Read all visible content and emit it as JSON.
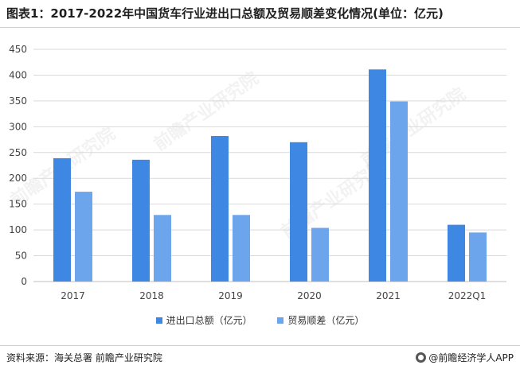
{
  "title": "图表1：2017-2022年中国货车行业进出口总额及贸易顺差变化情况(单位：亿元)",
  "source": "资料来源：海关总署 前瞻产业研究院",
  "brand": "@前瞻经济学人APP",
  "watermark": "前瞻产业研究院",
  "colors": {
    "series1": "#3e87e3",
    "series2": "#6da5ec",
    "grid": "#d9d9d9",
    "axis": "#bfbfbf"
  },
  "chart_data": {
    "type": "bar",
    "title": "图表1：2017-2022年中国货车行业进出口总额及贸易顺差变化情况(单位：亿元)",
    "categories": [
      "2017",
      "2018",
      "2019",
      "2020",
      "2021",
      "2022Q1"
    ],
    "series": [
      {
        "name": "进出口总额（亿元）",
        "values": [
          239,
          236,
          282,
          270,
          411,
          110
        ]
      },
      {
        "name": "贸易顺差（亿元）",
        "values": [
          174,
          129,
          129,
          104,
          349,
          95
        ]
      }
    ],
    "ylim": [
      0,
      450
    ],
    "yticks": [
      0,
      50,
      100,
      150,
      200,
      250,
      300,
      350,
      400,
      450
    ],
    "grid": true,
    "legend": "bottom"
  }
}
